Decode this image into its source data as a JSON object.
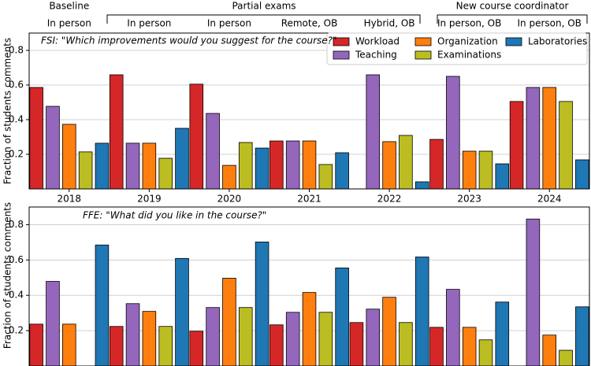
{
  "header": {
    "groups": [
      "Baseline",
      "Partial exams",
      "New course coordinator"
    ],
    "modes": [
      "In person",
      "In person",
      "In person",
      "Remote, OB",
      "Hybrid, OB",
      "In person, OB",
      "In person, OB"
    ]
  },
  "chart_data": [
    {
      "type": "bar",
      "title": "FSI: \"Which improvements would you suggest for the course?\"",
      "y_label": "Fraction of students comments",
      "categories": [
        "2018",
        "2019",
        "2020",
        "2021",
        "2022",
        "2023",
        "2024"
      ],
      "series": [
        {
          "name": "Workload",
          "color": "#d62728",
          "values": [
            0.586,
            0.659,
            0.605,
            0.277,
            0,
            0.286,
            0.505
          ]
        },
        {
          "name": "Teaching",
          "color": "#9467bd",
          "values": [
            0.477,
            0.264,
            0.436,
            0.277,
            0.659,
            0.65,
            0.586
          ]
        },
        {
          "name": "Organization",
          "color": "#ff7f0e",
          "values": [
            0.373,
            0.264,
            0.136,
            0.277,
            0.273,
            0.218,
            0.586
          ]
        },
        {
          "name": "Examinations",
          "color": "#bcbd22",
          "values": [
            0.214,
            0.177,
            0.268,
            0.141,
            0.309,
            0.218,
            0.505
          ]
        },
        {
          "name": "Laboratories",
          "color": "#1f77b4",
          "values": [
            0.264,
            0.35,
            0.236,
            0.209,
            0.041,
            0.145,
            0.168
          ]
        }
      ],
      "ylim": [
        0,
        0.9
      ],
      "yticks": [
        0.2,
        0.4,
        0.6,
        0.8
      ],
      "grid": true,
      "legend": "upper right"
    },
    {
      "type": "bar",
      "title": "FFE: \"What did you like in the course?\"",
      "y_label": "Fraction of students comments",
      "series": [
        {
          "color": "#d62728",
          "values": [
            0.237,
            0.224,
            0.197,
            0.233,
            0.246,
            0.219,
            0
          ]
        },
        {
          "color": "#9467bd",
          "values": [
            0.479,
            0.353,
            0.331,
            0.304,
            0.322,
            0.434,
            0.832
          ]
        },
        {
          "color": "#ff7f0e",
          "values": [
            0.237,
            0.309,
            0.497,
            0.416,
            0.389,
            0.219,
            0.175
          ]
        },
        {
          "color": "#bcbd22",
          "values": [
            0,
            0.224,
            0.331,
            0.304,
            0.246,
            0.148,
            0.089
          ]
        },
        {
          "color": "#1f77b4",
          "values": [
            0.685,
            0.609,
            0.702,
            0.555,
            0.617,
            0.362,
            0.335
          ]
        }
      ],
      "ylim": [
        0,
        0.9
      ],
      "yticks": [
        0.2,
        0.4,
        0.6,
        0.8
      ],
      "grid": true
    }
  ]
}
